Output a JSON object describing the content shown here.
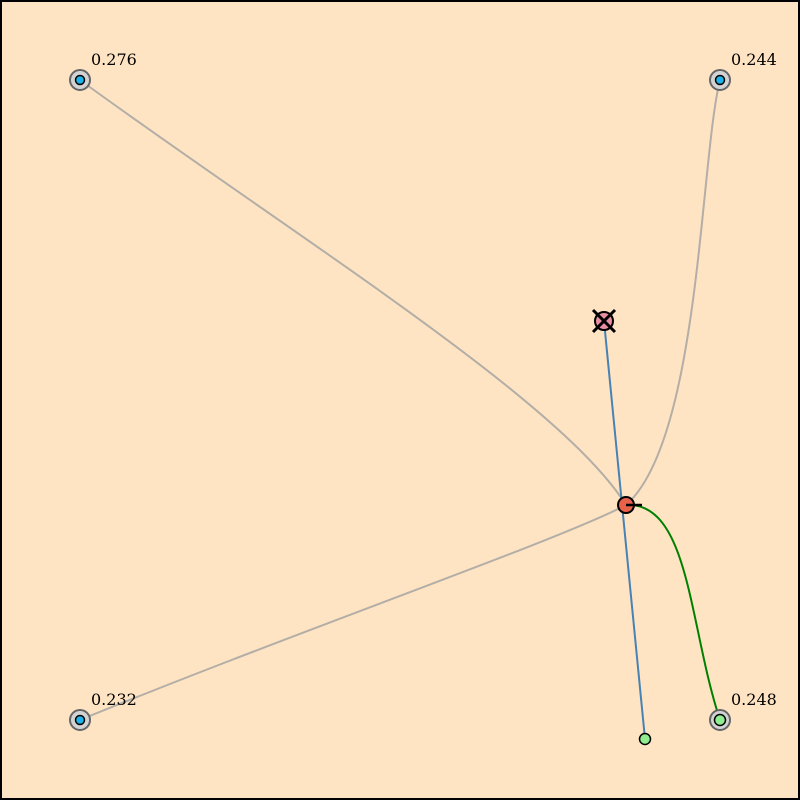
{
  "diagram": {
    "background_color": "#ffe4c4",
    "corners": [
      {
        "id": "top-left",
        "label": "0.276",
        "dot_color": "#1eb4eb"
      },
      {
        "id": "top-right",
        "label": "0.244",
        "dot_color": "#1eb4eb"
      },
      {
        "id": "bottom-left",
        "label": "0.232",
        "dot_color": "#1eb4eb"
      },
      {
        "id": "bottom-right",
        "label": "0.248",
        "dot_color": "#90ee90"
      }
    ],
    "center_node": {
      "color": "#e8614a"
    },
    "target_marker": {
      "color": "#e88fa0"
    },
    "goal_node": {
      "color": "#90ee90"
    },
    "colors": {
      "gray_link": "#b3aea6",
      "blue_link": "#4682b4",
      "green_link": "#008000"
    }
  }
}
